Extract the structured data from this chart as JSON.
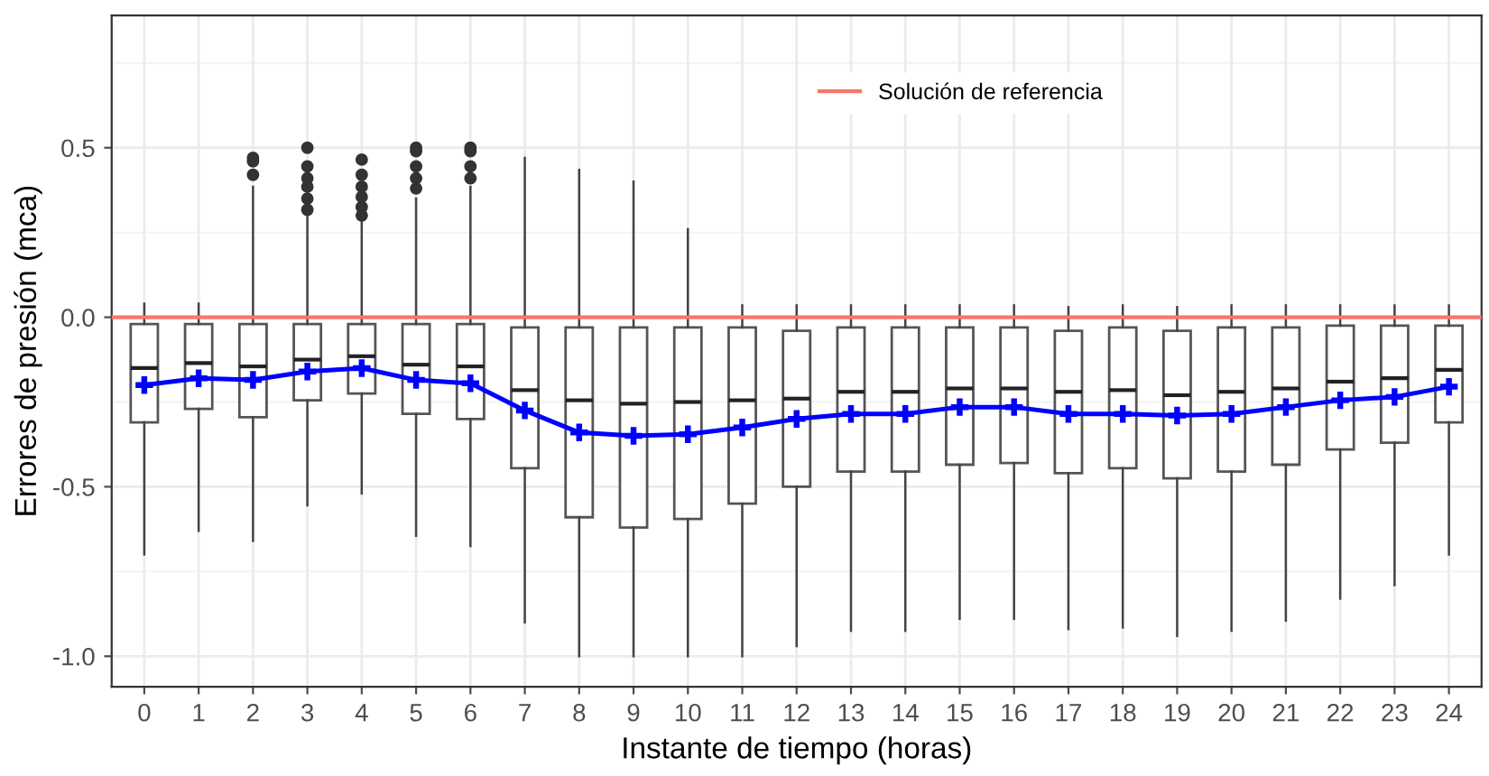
{
  "chart_data": {
    "type": "box",
    "xlabel": "Instante de tiempo (horas)",
    "ylabel": "Errores de presión (mca)",
    "categories": [
      "0",
      "1",
      "2",
      "3",
      "4",
      "5",
      "6",
      "7",
      "8",
      "9",
      "10",
      "11",
      "12",
      "13",
      "14",
      "15",
      "16",
      "17",
      "18",
      "19",
      "20",
      "21",
      "22",
      "23",
      "24"
    ],
    "boxes": [
      {
        "low": -0.7,
        "q1": -0.31,
        "median": -0.15,
        "q3": -0.02,
        "high": 0.04
      },
      {
        "low": -0.63,
        "q1": -0.27,
        "median": -0.135,
        "q3": -0.02,
        "high": 0.04
      },
      {
        "low": -0.66,
        "q1": -0.295,
        "median": -0.145,
        "q3": -0.02,
        "high": 0.385,
        "outliers": [
          0.47,
          0.46,
          0.42
        ]
      },
      {
        "low": -0.555,
        "q1": -0.245,
        "median": -0.125,
        "q3": -0.02,
        "high": 0.31,
        "outliers": [
          0.5,
          0.445,
          0.41,
          0.385,
          0.35,
          0.317
        ]
      },
      {
        "low": -0.52,
        "q1": -0.225,
        "median": -0.115,
        "q3": -0.02,
        "high": 0.29,
        "outliers": [
          0.465,
          0.42,
          0.385,
          0.355,
          0.325,
          0.3
        ]
      },
      {
        "low": -0.645,
        "q1": -0.285,
        "median": -0.14,
        "q3": -0.02,
        "high": 0.35,
        "outliers": [
          0.5,
          0.49,
          0.445,
          0.41,
          0.38
        ]
      },
      {
        "low": -0.675,
        "q1": -0.3,
        "median": -0.145,
        "q3": -0.02,
        "high": 0.385,
        "outliers": [
          0.5,
          0.49,
          0.445,
          0.41
        ]
      },
      {
        "low": -0.9,
        "q1": -0.445,
        "median": -0.215,
        "q3": -0.03,
        "high": 0.47
      },
      {
        "low": -1.0,
        "q1": -0.59,
        "median": -0.245,
        "q3": -0.03,
        "high": 0.435
      },
      {
        "low": -1.0,
        "q1": -0.62,
        "median": -0.255,
        "q3": -0.03,
        "high": 0.4
      },
      {
        "low": -1.0,
        "q1": -0.595,
        "median": -0.25,
        "q3": -0.03,
        "high": 0.26
      },
      {
        "low": -1.0,
        "q1": -0.55,
        "median": -0.245,
        "q3": -0.03,
        "high": 0.035
      },
      {
        "low": -0.97,
        "q1": -0.5,
        "median": -0.24,
        "q3": -0.04,
        "high": 0.035
      },
      {
        "low": -0.925,
        "q1": -0.455,
        "median": -0.22,
        "q3": -0.03,
        "high": 0.035
      },
      {
        "low": -0.925,
        "q1": -0.455,
        "median": -0.22,
        "q3": -0.03,
        "high": 0.035
      },
      {
        "low": -0.89,
        "q1": -0.435,
        "median": -0.21,
        "q3": -0.03,
        "high": 0.035
      },
      {
        "low": -0.89,
        "q1": -0.43,
        "median": -0.21,
        "q3": -0.03,
        "high": 0.035
      },
      {
        "low": -0.92,
        "q1": -0.46,
        "median": -0.22,
        "q3": -0.04,
        "high": 0.03
      },
      {
        "low": -0.915,
        "q1": -0.445,
        "median": -0.215,
        "q3": -0.03,
        "high": 0.035
      },
      {
        "low": -0.94,
        "q1": -0.475,
        "median": -0.23,
        "q3": -0.04,
        "high": 0.03
      },
      {
        "low": -0.925,
        "q1": -0.455,
        "median": -0.22,
        "q3": -0.03,
        "high": 0.035
      },
      {
        "low": -0.895,
        "q1": -0.435,
        "median": -0.21,
        "q3": -0.03,
        "high": 0.035
      },
      {
        "low": -0.83,
        "q1": -0.39,
        "median": -0.19,
        "q3": -0.025,
        "high": 0.035
      },
      {
        "low": -0.79,
        "q1": -0.37,
        "median": -0.18,
        "q3": -0.025,
        "high": 0.035
      },
      {
        "low": -0.7,
        "q1": -0.31,
        "median": -0.155,
        "q3": -0.025,
        "high": 0.035
      }
    ],
    "series": [
      {
        "type": "line",
        "color": "#0000ff",
        "marker": "cross",
        "values": [
          -0.2,
          -0.18,
          -0.185,
          -0.16,
          -0.15,
          -0.185,
          -0.195,
          -0.275,
          -0.34,
          -0.35,
          -0.345,
          -0.325,
          -0.3,
          -0.285,
          -0.285,
          -0.265,
          -0.265,
          -0.285,
          -0.285,
          -0.29,
          -0.285,
          -0.265,
          -0.245,
          -0.235,
          -0.205
        ]
      }
    ],
    "ref_lines": [
      {
        "axis": "y",
        "value": 0,
        "label": "Solución de referencia",
        "color": "#f8766d"
      }
    ],
    "ylim": [
      -1.09,
      0.89
    ],
    "yticks": [
      {
        "value": -1.0,
        "label": "-1.0"
      },
      -0.5,
      {
        "value": 0,
        "label": "0.0"
      },
      0.5
    ],
    "grid": true,
    "legend": "top"
  }
}
